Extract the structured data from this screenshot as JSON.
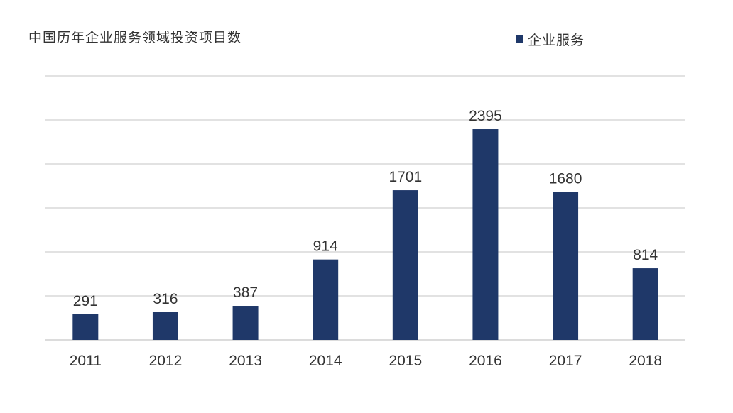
{
  "chart_data": {
    "type": "bar",
    "title": "中国历年企业服务领域投资项目数",
    "categories": [
      "2011",
      "2012",
      "2013",
      "2014",
      "2015",
      "2016",
      "2017",
      "2018"
    ],
    "series": [
      {
        "name": "企业服务",
        "values": [
          291,
          316,
          387,
          914,
          1701,
          2395,
          1680,
          814
        ]
      }
    ],
    "ylim": [
      0,
      3000
    ],
    "y_gridlines": [
      0,
      500,
      1000,
      1500,
      2000,
      2500,
      3000
    ],
    "y_tick_labels_shown": false,
    "data_labels": true,
    "grid": true,
    "legend_position": "top-right",
    "bar_color": "#1f3869"
  }
}
